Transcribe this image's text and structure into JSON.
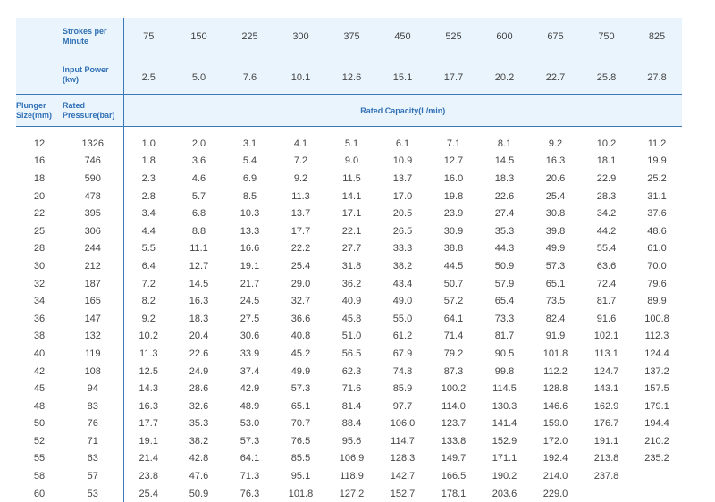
{
  "header": {
    "strokes_label": "Strokes per Minute",
    "power_label": "Input Power (kw)",
    "plunger_label": "Plunger Size(mm)",
    "pressure_label": "Rated Pressure(bar)",
    "capacity_label": "Rated Capacity(L/min)"
  },
  "strokes": [
    "75",
    "150",
    "225",
    "300",
    "375",
    "450",
    "525",
    "600",
    "675",
    "750",
    "825"
  ],
  "power": [
    "2.5",
    "5.0",
    "7.6",
    "10.1",
    "12.6",
    "15.1",
    "17.7",
    "20.2",
    "22.7",
    "25.8",
    "27.8"
  ],
  "rows": [
    {
      "size": "12",
      "pressure": "1326",
      "values": [
        "1.0",
        "2.0",
        "3.1",
        "4.1",
        "5.1",
        "6.1",
        "7.1",
        "8.1",
        "9.2",
        "10.2",
        "11.2"
      ]
    },
    {
      "size": "16",
      "pressure": "746",
      "values": [
        "1.8",
        "3.6",
        "5.4",
        "7.2",
        "9.0",
        "10.9",
        "12.7",
        "14.5",
        "16.3",
        "18.1",
        "19.9"
      ]
    },
    {
      "size": "18",
      "pressure": "590",
      "values": [
        "2.3",
        "4.6",
        "6.9",
        "9.2",
        "11.5",
        "13.7",
        "16.0",
        "18.3",
        "20.6",
        "22.9",
        "25.2"
      ]
    },
    {
      "size": "20",
      "pressure": "478",
      "values": [
        "2.8",
        "5.7",
        "8.5",
        "11.3",
        "14.1",
        "17.0",
        "19.8",
        "22.6",
        "25.4",
        "28.3",
        "31.1"
      ]
    },
    {
      "size": "22",
      "pressure": "395",
      "values": [
        "3.4",
        "6.8",
        "10.3",
        "13.7",
        "17.1",
        "20.5",
        "23.9",
        "27.4",
        "30.8",
        "34.2",
        "37.6"
      ]
    },
    {
      "size": "25",
      "pressure": "306",
      "values": [
        "4.4",
        "8.8",
        "13.3",
        "17.7",
        "22.1",
        "26.5",
        "30.9",
        "35.3",
        "39.8",
        "44.2",
        "48.6"
      ]
    },
    {
      "size": "28",
      "pressure": "244",
      "values": [
        "5.5",
        "11.1",
        "16.6",
        "22.2",
        "27.7",
        "33.3",
        "38.8",
        "44.3",
        "49.9",
        "55.4",
        "61.0"
      ]
    },
    {
      "size": "30",
      "pressure": "212",
      "values": [
        "6.4",
        "12.7",
        "19.1",
        "25.4",
        "31.8",
        "38.2",
        "44.5",
        "50.9",
        "57.3",
        "63.6",
        "70.0"
      ]
    },
    {
      "size": "32",
      "pressure": "187",
      "values": [
        "7.2",
        "14.5",
        "21.7",
        "29.0",
        "36.2",
        "43.4",
        "50.7",
        "57.9",
        "65.1",
        "72.4",
        "79.6"
      ]
    },
    {
      "size": "34",
      "pressure": "165",
      "values": [
        "8.2",
        "16.3",
        "24.5",
        "32.7",
        "40.9",
        "49.0",
        "57.2",
        "65.4",
        "73.5",
        "81.7",
        "89.9"
      ]
    },
    {
      "size": "36",
      "pressure": "147",
      "values": [
        "9.2",
        "18.3",
        "27.5",
        "36.6",
        "45.8",
        "55.0",
        "64.1",
        "73.3",
        "82.4",
        "91.6",
        "100.8"
      ]
    },
    {
      "size": "38",
      "pressure": "132",
      "values": [
        "10.2",
        "20.4",
        "30.6",
        "40.8",
        "51.0",
        "61.2",
        "71.4",
        "81.7",
        "91.9",
        "102.1",
        "112.3"
      ]
    },
    {
      "size": "40",
      "pressure": "119",
      "values": [
        "11.3",
        "22.6",
        "33.9",
        "45.2",
        "56.5",
        "67.9",
        "79.2",
        "90.5",
        "101.8",
        "113.1",
        "124.4"
      ]
    },
    {
      "size": "42",
      "pressure": "108",
      "values": [
        "12.5",
        "24.9",
        "37.4",
        "49.9",
        "62.3",
        "74.8",
        "87.3",
        "99.8",
        "112.2",
        "124.7",
        "137.2"
      ]
    },
    {
      "size": "45",
      "pressure": "94",
      "values": [
        "14.3",
        "28.6",
        "42.9",
        "57.3",
        "71.6",
        "85.9",
        "100.2",
        "114.5",
        "128.8",
        "143.1",
        "157.5"
      ]
    },
    {
      "size": "48",
      "pressure": "83",
      "values": [
        "16.3",
        "32.6",
        "48.9",
        "65.1",
        "81.4",
        "97.7",
        "114.0",
        "130.3",
        "146.6",
        "162.9",
        "179.1"
      ]
    },
    {
      "size": "50",
      "pressure": "76",
      "values": [
        "17.7",
        "35.3",
        "53.0",
        "70.7",
        "88.4",
        "106.0",
        "123.7",
        "141.4",
        "159.0",
        "176.7",
        "194.4"
      ]
    },
    {
      "size": "52",
      "pressure": "71",
      "values": [
        "19.1",
        "38.2",
        "57.3",
        "76.5",
        "95.6",
        "114.7",
        "133.8",
        "152.9",
        "172.0",
        "191.1",
        "210.2"
      ]
    },
    {
      "size": "55",
      "pressure": "63",
      "values": [
        "21.4",
        "42.8",
        "64.1",
        "85.5",
        "106.9",
        "128.3",
        "149.7",
        "171.1",
        "192.4",
        "213.8",
        "235.2"
      ]
    },
    {
      "size": "58",
      "pressure": "57",
      "values": [
        "23.8",
        "47.6",
        "71.3",
        "95.1",
        "118.9",
        "142.7",
        "166.5",
        "190.2",
        "214.0",
        "237.8",
        ""
      ]
    },
    {
      "size": "60",
      "pressure": "53",
      "values": [
        "25.4",
        "50.9",
        "76.3",
        "101.8",
        "127.2",
        "152.7",
        "178.1",
        "203.6",
        "229.0",
        "",
        ""
      ]
    }
  ]
}
